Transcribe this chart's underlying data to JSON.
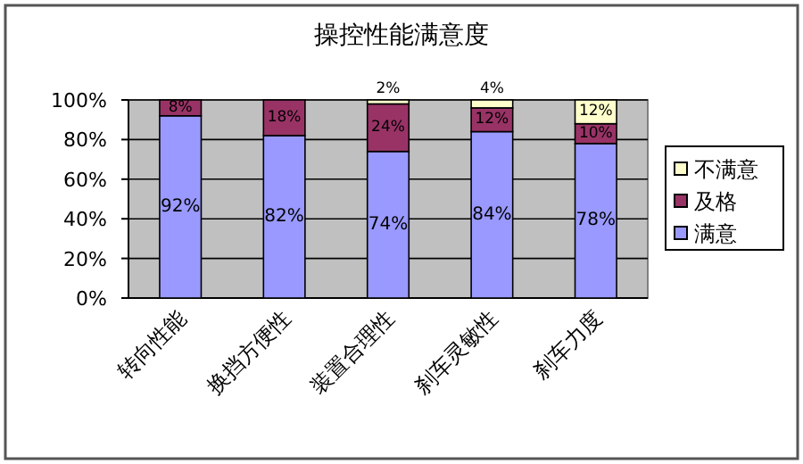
{
  "chart_data": {
    "type": "bar",
    "title": "操控性能满意度",
    "stacked": true,
    "categories": [
      "转向性能",
      "换挡方便性",
      "装置合理性",
      "刹车灵敏性",
      "刹车力度"
    ],
    "series": [
      {
        "name": "满意",
        "color": "#9999ff",
        "values": [
          92,
          82,
          74,
          84,
          78
        ],
        "value_labels": [
          "92%",
          "82%",
          "74%",
          "84%",
          "78%"
        ]
      },
      {
        "name": "及格",
        "color": "#993366",
        "values": [
          8,
          18,
          24,
          12,
          10
        ],
        "value_labels": [
          "8%",
          "18%",
          "24%",
          "12%",
          "10%"
        ]
      },
      {
        "name": "不满意",
        "color": "#ffffcc",
        "values": [
          null,
          null,
          2,
          4,
          12
        ],
        "value_labels": [
          null,
          null,
          "2%",
          "4%",
          "12%"
        ]
      }
    ],
    "ylim": [
      0,
      100
    ],
    "yticks": [
      {
        "value": 0,
        "label": "0%"
      },
      {
        "value": 20,
        "label": "20%"
      },
      {
        "value": 40,
        "label": "40%"
      },
      {
        "value": 60,
        "label": "60%"
      },
      {
        "value": 80,
        "label": "80%"
      },
      {
        "value": 100,
        "label": "100%"
      }
    ],
    "grid": "y",
    "legend": "right"
  }
}
